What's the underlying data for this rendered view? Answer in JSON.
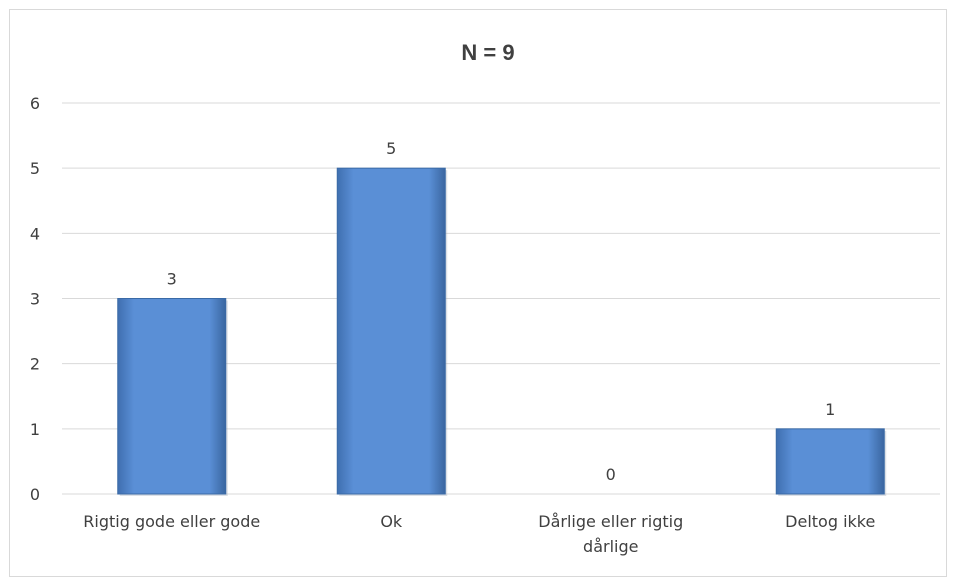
{
  "chart_data": {
    "type": "bar",
    "title": "N = 9",
    "xlabel": "",
    "ylabel": "",
    "categories": [
      [
        "Rigtig gode eller gode"
      ],
      [
        "Ok"
      ],
      [
        "Dårlige eller rigtig",
        "dårlige"
      ],
      [
        "Deltog ikke"
      ]
    ],
    "values": [
      3,
      5,
      0,
      1
    ],
    "ylim": [
      0,
      6
    ],
    "yticks": [
      0,
      1,
      2,
      3,
      4,
      5,
      6
    ],
    "grid": true,
    "legend": "none",
    "colors": {
      "bar": "#4f81bd",
      "bar_light": "#5b8fd3",
      "bar_dark": "#3a6aa6",
      "grid": "#d9d9d9",
      "text": "#404040"
    }
  }
}
